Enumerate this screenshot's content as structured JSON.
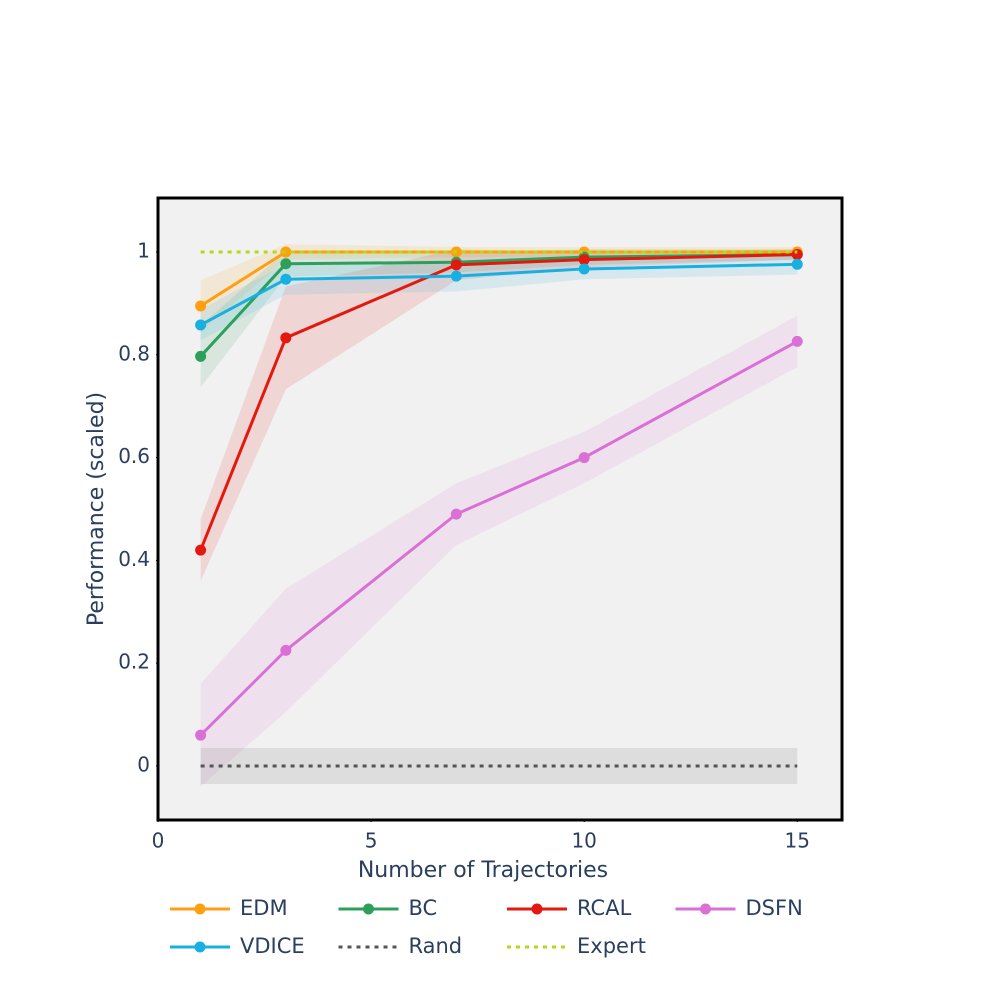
{
  "chart_data": {
    "type": "line",
    "x_label": "Number of Trajectories",
    "y_label": "Performance (scaled)",
    "xlim": [
      0,
      16.05
    ],
    "ylim": [
      -0.105,
      1.105
    ],
    "xticks": [
      0,
      5,
      10,
      15
    ],
    "yticks": [
      0,
      0.2,
      0.4,
      0.6,
      0.8,
      1
    ],
    "series": [
      {
        "name": "EDM",
        "color": "#ff9f10",
        "mode": "lines+markers",
        "x": [
          1,
          3,
          7,
          10,
          15
        ],
        "values": [
          0.895,
          1.0,
          1.0,
          1.0,
          1.0
        ],
        "errors": [
          0.05,
          0.015,
          0.01,
          0.01,
          0.01
        ]
      },
      {
        "name": "BC",
        "color": "#2ca05a",
        "mode": "lines+markers",
        "x": [
          1,
          3,
          7,
          10,
          15
        ],
        "values": [
          0.797,
          0.977,
          0.98,
          0.99,
          0.995
        ],
        "errors": [
          0.06,
          0.025,
          0.02,
          0.015,
          0.01
        ]
      },
      {
        "name": "RCAL",
        "color": "#e3190f",
        "mode": "lines+markers",
        "x": [
          1,
          3,
          7,
          10,
          15
        ],
        "values": [
          0.42,
          0.833,
          0.975,
          0.985,
          0.995
        ],
        "errors": [
          0.06,
          0.1,
          0.03,
          0.015,
          0.01
        ]
      },
      {
        "name": "DSFN",
        "color": "#da70d6",
        "mode": "lines+markers",
        "x": [
          1,
          3,
          7,
          10,
          15
        ],
        "values": [
          0.06,
          0.225,
          0.49,
          0.6,
          0.826
        ],
        "errors": [
          0.1,
          0.12,
          0.06,
          0.05,
          0.05
        ]
      },
      {
        "name": "VDICE",
        "color": "#17b0e0",
        "mode": "lines+markers",
        "x": [
          1,
          3,
          7,
          10,
          15
        ],
        "values": [
          0.858,
          0.947,
          0.953,
          0.967,
          0.976
        ],
        "errors": [
          0.03,
          0.03,
          0.03,
          0.02,
          0.02
        ]
      },
      {
        "name": "Rand",
        "color": "#555555",
        "mode": "dot",
        "x": [
          1,
          15
        ],
        "values": [
          0,
          0
        ],
        "errors": [
          0.035,
          0.035
        ]
      },
      {
        "name": "Expert",
        "color": "#b5d915",
        "mode": "dot",
        "x": [
          1,
          15
        ],
        "values": [
          1,
          1
        ]
      }
    ]
  }
}
